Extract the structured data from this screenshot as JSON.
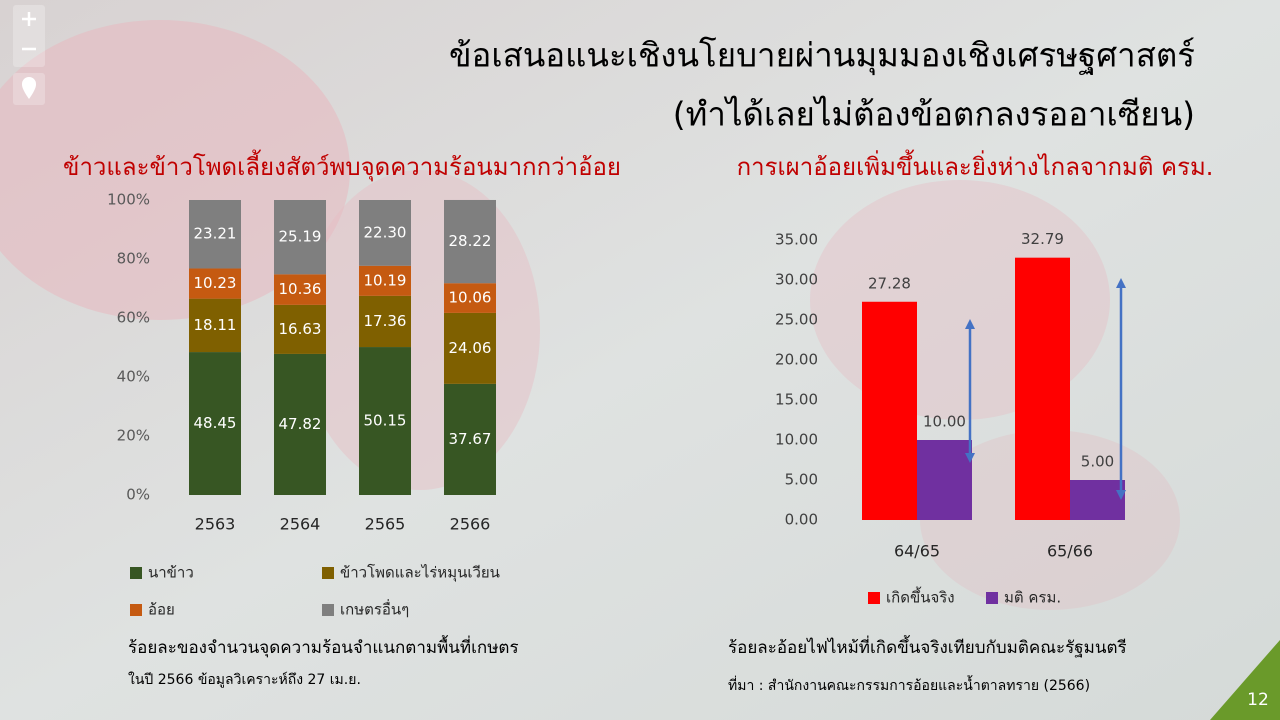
{
  "slide": {
    "title_line1": "ข้อเสนอแนะเชิงนโยบายผ่านมุมมองเชิงเศรษฐศาสตร์",
    "title_line2": "(ทำได้เลยไม่ต้องข้อตกลงรออาเซียน)",
    "page_number": "12"
  },
  "chart_data": [
    {
      "type": "bar",
      "stacked": true,
      "title": "ข้าวและข้าวโพดเลี้ยงสัตว์พบจุดความร้อนมากกว่าอ้อย",
      "caption": "ร้อยละของจำนวนจุดความร้อนจำแนกตามพื้นที่เกษตร",
      "note": "ในปี 2566 ข้อมูลวิเคราะห์ถึง 27 เม.ย.",
      "categories": [
        "2563",
        "2564",
        "2565",
        "2566"
      ],
      "series": [
        {
          "name": "นาข้าว",
          "color": "#375623",
          "values": [
            48.45,
            47.82,
            50.15,
            37.67
          ],
          "value_labels": [
            "48.45",
            "47.82",
            "50.15",
            "37.67"
          ]
        },
        {
          "name": "ข้าวโพดและไร่หมุนเวียน",
          "color": "#7f6000",
          "values": [
            18.11,
            16.63,
            17.36,
            24.06
          ],
          "value_labels": [
            "18.11",
            "16.63",
            "17.36",
            "24.06"
          ]
        },
        {
          "name": "อ้อย",
          "color": "#c55a11",
          "values": [
            10.23,
            10.36,
            10.19,
            10.06
          ],
          "value_labels": [
            "10.23",
            "10.36",
            "10.19",
            "10.06"
          ]
        },
        {
          "name": "เกษตรอื่นๆ",
          "color": "#7f7f7f",
          "values": [
            23.21,
            25.19,
            22.3,
            28.22
          ],
          "value_labels": [
            "23.21",
            "25.19",
            "22.30",
            "28.22"
          ]
        }
      ],
      "ylim": [
        0,
        100
      ],
      "yticks": [
        {
          "value": 0,
          "label": "0%"
        },
        {
          "value": 20,
          "label": "20%"
        },
        {
          "value": 40,
          "label": "40%"
        },
        {
          "value": 60,
          "label": "60%"
        },
        {
          "value": 80,
          "label": "80%"
        },
        {
          "value": 100,
          "label": "100%"
        }
      ]
    },
    {
      "type": "bar",
      "stacked": false,
      "title": "การเผาอ้อยเพิ่มขึ้นและยิ่งห่างไกลจากมติ ครม.",
      "caption": "ร้อยละอ้อยไฟไหม้ที่เกิดขึ้นจริงเทียบกับมติคณะรัฐมนตรี",
      "note": "ที่มา : สำนักงานคณะกรรมการอ้อยและน้ำตาลทราย (2566)",
      "categories": [
        "64/65",
        "65/66"
      ],
      "series": [
        {
          "name": "เกิดขึ้นจริง",
          "color": "#ff0000",
          "values": [
            27.28,
            32.79
          ],
          "value_labels": [
            "27.28",
            "32.79"
          ]
        },
        {
          "name": "มติ ครม.",
          "color": "#7030a0",
          "values": [
            10,
            5
          ],
          "value_labels": [
            "10.00",
            "5.00"
          ]
        }
      ],
      "ylim": [
        0,
        35
      ],
      "yticks": [
        {
          "value": 0,
          "label": "0.00"
        },
        {
          "value": 5,
          "label": "5.00"
        },
        {
          "value": 10,
          "label": "10.00"
        },
        {
          "value": 15,
          "label": "15.00"
        },
        {
          "value": 20,
          "label": "20.00"
        },
        {
          "value": 25,
          "label": "25.00"
        },
        {
          "value": 30,
          "label": "30.00"
        },
        {
          "value": 35,
          "label": "35.00"
        }
      ]
    }
  ]
}
